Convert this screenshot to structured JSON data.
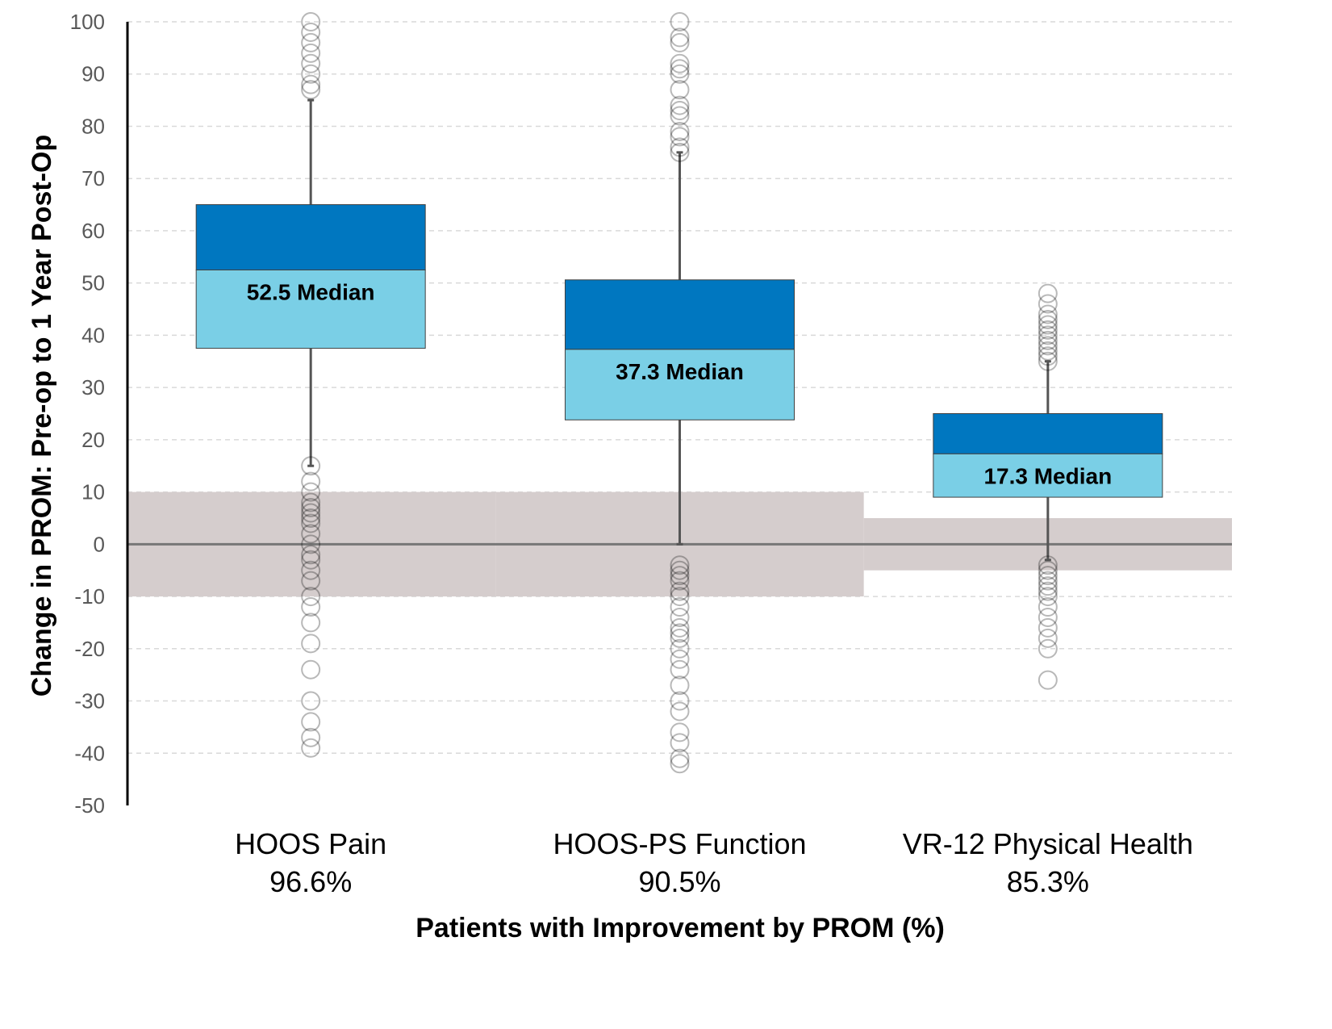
{
  "chart_data": {
    "type": "box",
    "xlabel": "Patients with Improvement by PROM (%)",
    "ylabel": "Change in PROM: Pre-op to 1 Year Post-Op",
    "ylim": [
      -50,
      100
    ],
    "yticks": [
      100,
      90,
      80,
      70,
      60,
      50,
      40,
      30,
      20,
      10,
      0,
      -10,
      -20,
      -30,
      -40,
      -50
    ],
    "grid": "horizontal dashed",
    "colors": {
      "upper_box": "#0077C0",
      "lower_box": "#7ACFE6",
      "band": "#D5CDCD",
      "whisker": "#555555"
    },
    "categories": [
      {
        "name": "HOOS Pain",
        "percent": "96.6%",
        "median_label": "52.5 Median",
        "q1": 37.5,
        "median": 52.5,
        "q3": 65,
        "whisker_low": 15,
        "whisker_high": 85,
        "mcid_band": [
          -10,
          10
        ],
        "outliers": [
          100,
          98,
          96,
          94,
          92,
          90,
          88,
          87,
          15,
          12,
          10,
          8,
          7,
          6,
          5,
          4,
          2,
          0,
          -2,
          -3,
          -5,
          -7,
          -10,
          -12,
          -15,
          -19,
          -24,
          -30,
          -34,
          -37,
          -39
        ]
      },
      {
        "name": "HOOS-PS Function",
        "percent": "90.5%",
        "median_label": "37.3 Median",
        "q1": 23.8,
        "median": 37.3,
        "q3": 50.6,
        "whisker_low": 0,
        "whisker_high": 75,
        "mcid_band": [
          -10,
          10
        ],
        "outliers": [
          100,
          97,
          96,
          92,
          91,
          90,
          87,
          84,
          83,
          82,
          79,
          78,
          76,
          75,
          -4,
          -5,
          -6,
          -7,
          -9,
          -10,
          -12,
          -14,
          -16,
          -17,
          -18,
          -20,
          -22,
          -24,
          -27,
          -30,
          -32,
          -36,
          -38,
          -41,
          -42
        ]
      },
      {
        "name": "VR-12 Physical Health",
        "percent": "85.3%",
        "median_label": "17.3 Median",
        "q1": 9,
        "median": 17.3,
        "q3": 25,
        "whisker_low": -3,
        "whisker_high": 35,
        "mcid_band": [
          -5,
          5
        ],
        "outliers": [
          48,
          46,
          44,
          43,
          42,
          41,
          40,
          39,
          38,
          37,
          36,
          35,
          -4,
          -5,
          -6,
          -7,
          -8,
          -9,
          -10,
          -12,
          -14,
          -16,
          -18,
          -20,
          -26
        ]
      }
    ]
  }
}
